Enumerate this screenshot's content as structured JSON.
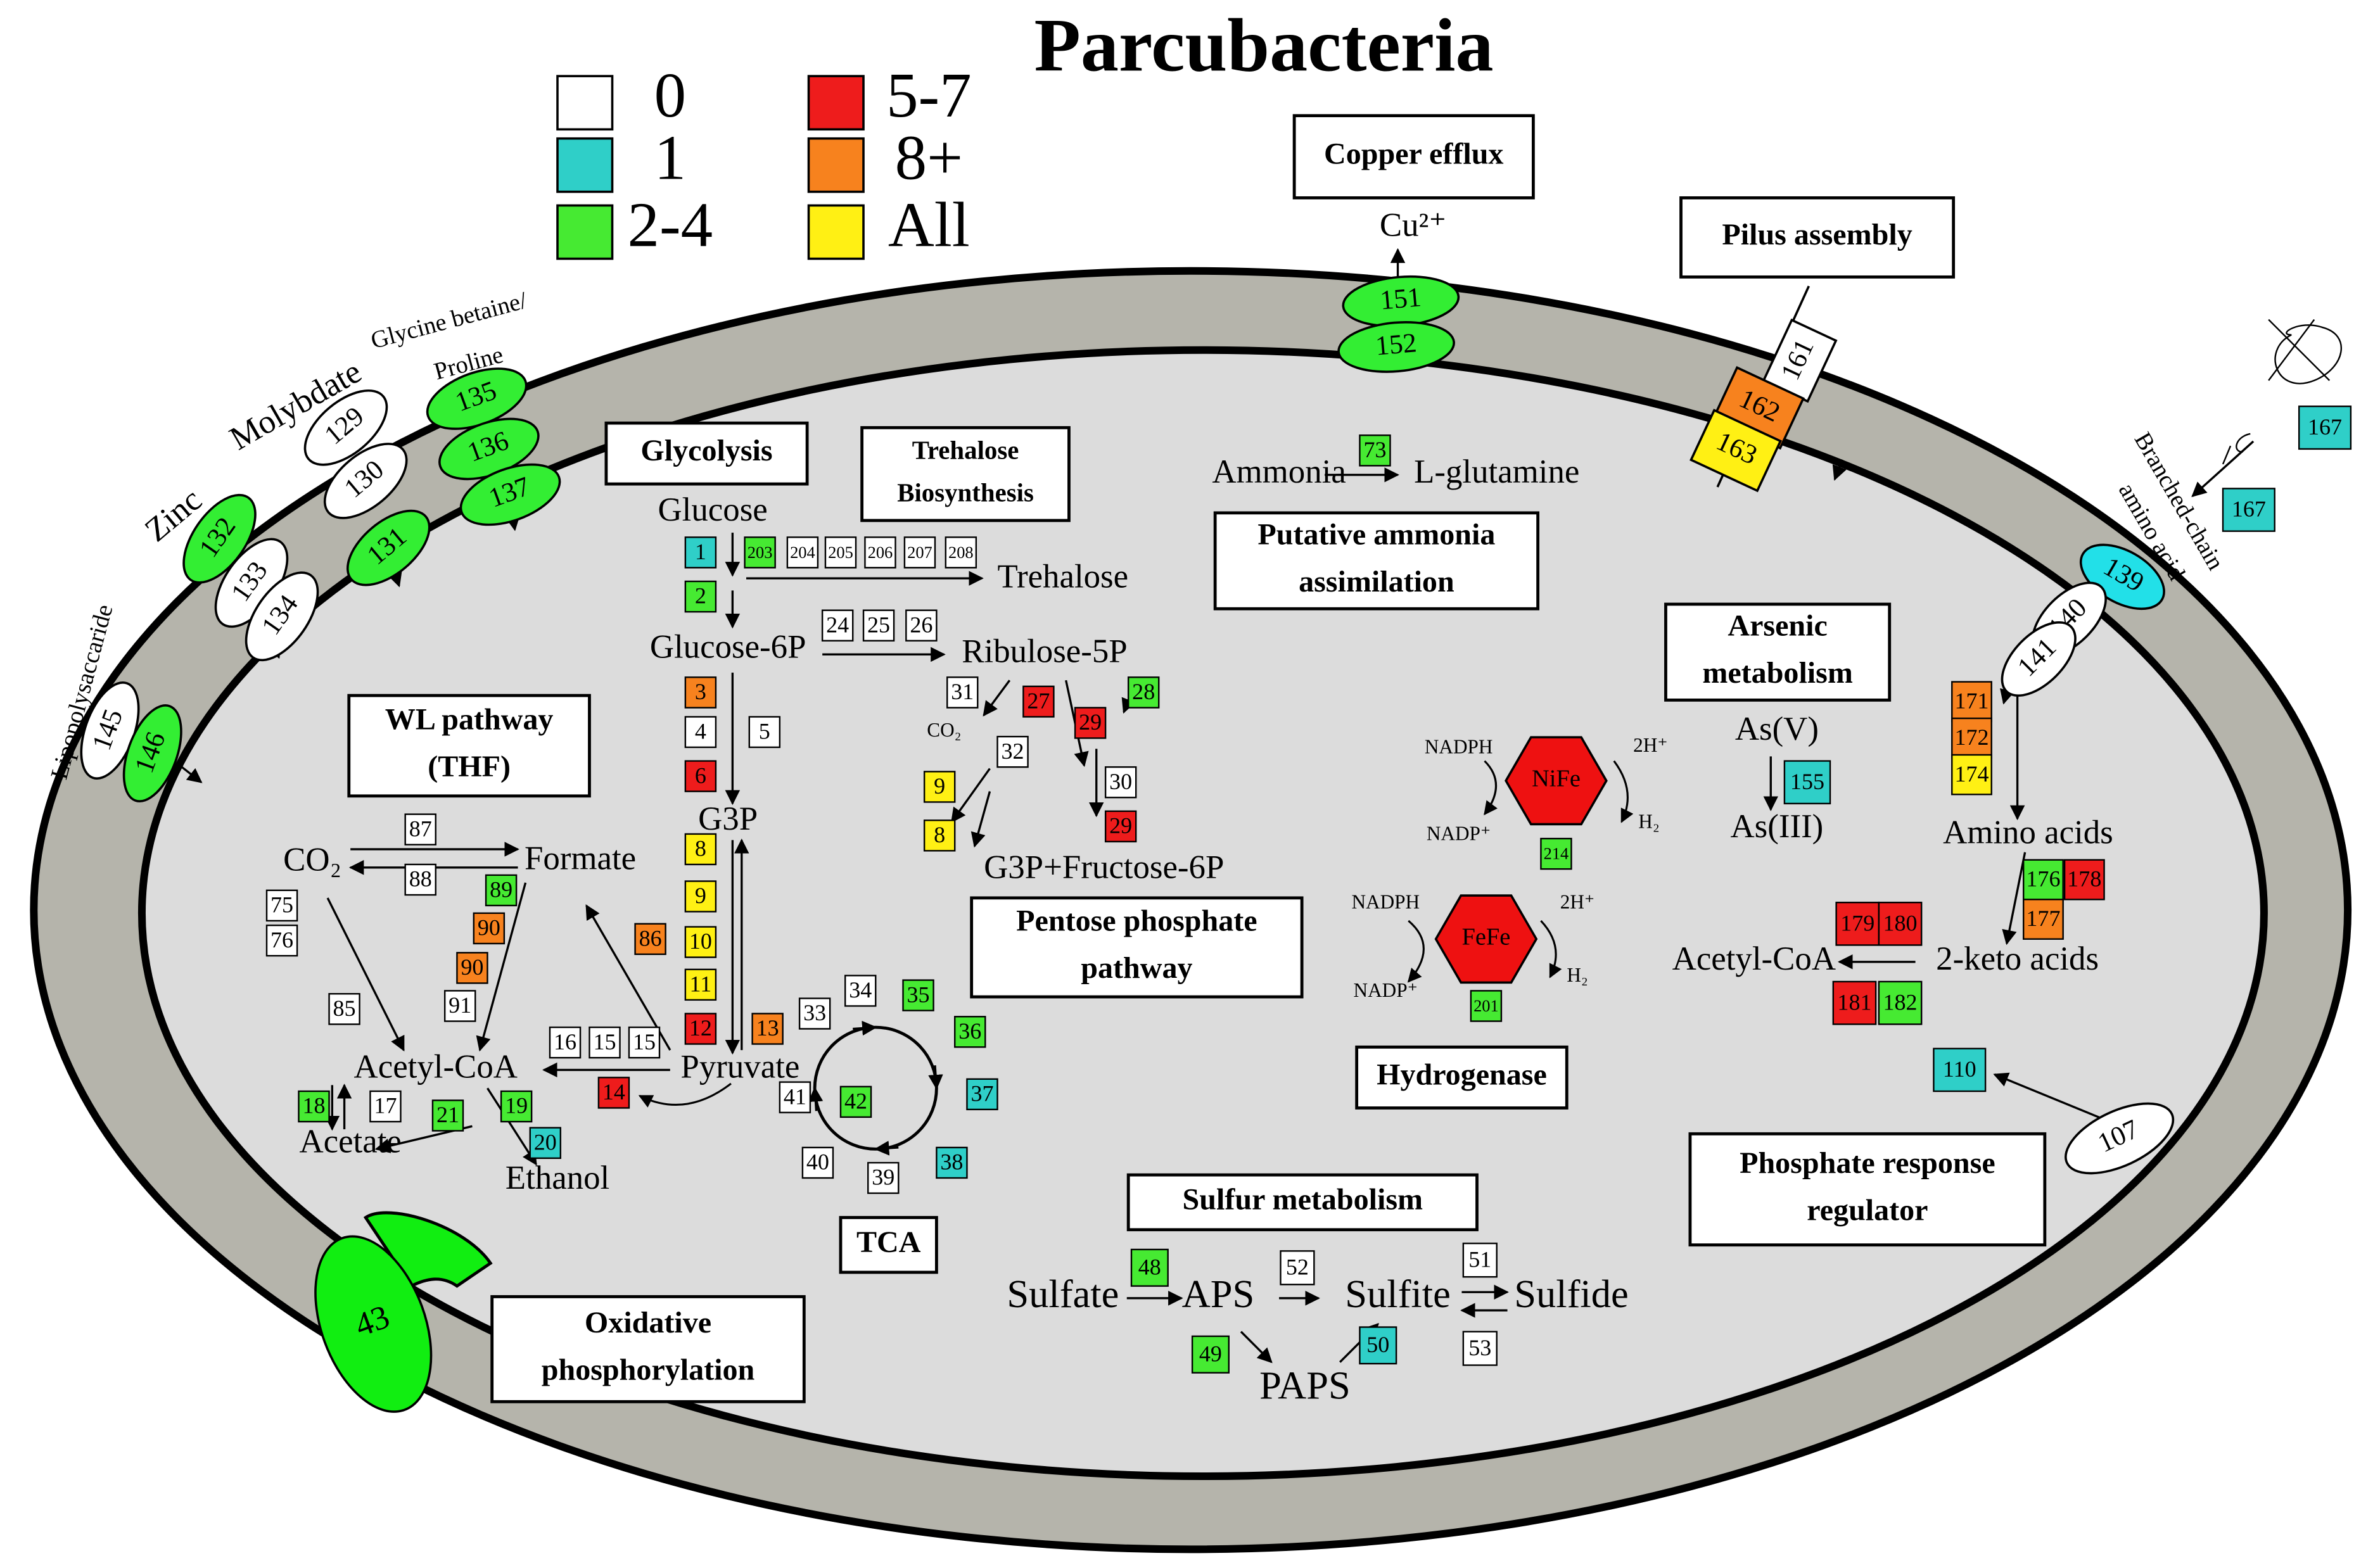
{
  "title": "Parcubacteria",
  "legend": [
    {
      "label": "0",
      "color": "#ffffff"
    },
    {
      "label": "1",
      "color": "#2fcfc8"
    },
    {
      "label": "2-4",
      "color": "#46ea32"
    },
    {
      "label": "5-7",
      "color": "#ee1c1c"
    },
    {
      "label": "8+",
      "color": "#f7821e"
    },
    {
      "label": "All",
      "color": "#fff014"
    }
  ],
  "sections": [
    [
      "Copper efflux"
    ],
    [
      "Pilus assembly"
    ],
    [
      "Glycolysis"
    ],
    [
      "Trehalose",
      "Biosynthesis"
    ],
    [
      "Putative ammonia",
      "assimilation"
    ],
    [
      "Arsenic",
      "metabolism"
    ],
    [
      "WL pathway",
      "(THF)"
    ],
    [
      "Pentose phosphate",
      "pathway"
    ],
    [
      "Hydrogenase"
    ],
    [
      "Phosphate response",
      "regulator"
    ],
    [
      "Sulfur metabolism"
    ],
    [
      "TCA"
    ],
    [
      "Oxidative",
      "phosphorylation"
    ]
  ],
  "metabolites": [
    "Glucose",
    "Glucose-6P",
    "Ribulose-5P",
    "Trehalose",
    "G3P",
    "Pyruvate",
    "G3P+Fructose-6P",
    "Formate",
    "CO₂",
    "Acetyl-CoA",
    "Acetate",
    "Ethanol",
    "Ammonia",
    "L-glutamine",
    "As(V)",
    "As(III)",
    "Amino acids",
    "2-keto acids",
    "Acetyl-CoA",
    "Sulfate",
    "APS",
    "Sulfite",
    "Sulfide",
    "PAPS",
    "CO₂",
    "NADPH",
    "NADP⁺",
    "2H⁺",
    "H₂",
    "NADPH",
    "NADP⁺",
    "2H⁺",
    "H₂",
    "Cu²⁺"
  ],
  "membrane_labels": [
    "Lipopolysaccaride",
    "Zinc",
    "Molybdate",
    "Glycine betaine/",
    "Proline",
    "Branched-chain",
    "amino acid"
  ],
  "hydrogenases": [
    "NiFe",
    "FeFe"
  ],
  "enzymes": [
    {
      "label": "1",
      "color": "#2fcfc8"
    },
    {
      "label": "203",
      "color": "#46ea32"
    },
    {
      "label": "204",
      "color": "#ffffff"
    },
    {
      "label": "205",
      "color": "#ffffff"
    },
    {
      "label": "206",
      "color": "#ffffff"
    },
    {
      "label": "207",
      "color": "#ffffff"
    },
    {
      "label": "208",
      "color": "#ffffff"
    },
    {
      "label": "2",
      "color": "#46ea32"
    },
    {
      "label": "24",
      "color": "#ffffff"
    },
    {
      "label": "25",
      "color": "#ffffff"
    },
    {
      "label": "26",
      "color": "#ffffff"
    },
    {
      "label": "3",
      "color": "#f7821e"
    },
    {
      "label": "4",
      "color": "#ffffff"
    },
    {
      "label": "5",
      "color": "#ffffff"
    },
    {
      "label": "6",
      "color": "#ee1c1c"
    },
    {
      "label": "8",
      "color": "#fff014"
    },
    {
      "label": "9",
      "color": "#fff014"
    },
    {
      "label": "10",
      "color": "#fff014"
    },
    {
      "label": "11",
      "color": "#fff014"
    },
    {
      "label": "12",
      "color": "#ee1c1c"
    },
    {
      "label": "13",
      "color": "#f7821e"
    },
    {
      "label": "31",
      "color": "#ffffff"
    },
    {
      "label": "27",
      "color": "#ee1c1c"
    },
    {
      "label": "29",
      "color": "#ee1c1c"
    },
    {
      "label": "28",
      "color": "#46ea32"
    },
    {
      "label": "32",
      "color": "#ffffff"
    },
    {
      "label": "9",
      "color": "#fff014"
    },
    {
      "label": "8",
      "color": "#fff014"
    },
    {
      "label": "30",
      "color": "#ffffff"
    },
    {
      "label": "29",
      "color": "#ee1c1c"
    },
    {
      "label": "87",
      "color": "#ffffff"
    },
    {
      "label": "88",
      "color": "#ffffff"
    },
    {
      "label": "89",
      "color": "#46ea32"
    },
    {
      "label": "90",
      "color": "#f7821e"
    },
    {
      "label": "90",
      "color": "#f7821e"
    },
    {
      "label": "91",
      "color": "#ffffff"
    },
    {
      "label": "86",
      "color": "#f7821e"
    },
    {
      "label": "75",
      "color": "#ffffff"
    },
    {
      "label": "76",
      "color": "#ffffff"
    },
    {
      "label": "85",
      "color": "#ffffff"
    },
    {
      "label": "16",
      "color": "#ffffff"
    },
    {
      "label": "15",
      "color": "#ffffff"
    },
    {
      "label": "15",
      "color": "#ffffff"
    },
    {
      "label": "14",
      "color": "#ee1c1c"
    },
    {
      "label": "18",
      "color": "#46ea32"
    },
    {
      "label": "17",
      "color": "#ffffff"
    },
    {
      "label": "19",
      "color": "#46ea32"
    },
    {
      "label": "21",
      "color": "#46ea32"
    },
    {
      "label": "20",
      "color": "#2fcfc8"
    },
    {
      "label": "33",
      "color": "#ffffff"
    },
    {
      "label": "34",
      "color": "#ffffff"
    },
    {
      "label": "35",
      "color": "#46ea32"
    },
    {
      "label": "36",
      "color": "#46ea32"
    },
    {
      "label": "37",
      "color": "#2fcfc8"
    },
    {
      "label": "38",
      "color": "#2fcfc8"
    },
    {
      "label": "39",
      "color": "#ffffff"
    },
    {
      "label": "40",
      "color": "#ffffff"
    },
    {
      "label": "41",
      "color": "#ffffff"
    },
    {
      "label": "42",
      "color": "#46ea32"
    },
    {
      "label": "73",
      "color": "#46ea32"
    },
    {
      "label": "155",
      "color": "#2fcfc8"
    },
    {
      "label": "214",
      "color": "#46ea32"
    },
    {
      "label": "201",
      "color": "#46ea32"
    },
    {
      "label": "171",
      "color": "#f7821e"
    },
    {
      "label": "172",
      "color": "#f7821e"
    },
    {
      "label": "174",
      "color": "#fff014"
    },
    {
      "label": "176",
      "color": "#46ea32"
    },
    {
      "label": "178",
      "color": "#ee1c1c"
    },
    {
      "label": "177",
      "color": "#f7821e"
    },
    {
      "label": "179",
      "color": "#ee1c1c"
    },
    {
      "label": "180",
      "color": "#ee1c1c"
    },
    {
      "label": "181",
      "color": "#ee1c1c"
    },
    {
      "label": "182",
      "color": "#46ea32"
    },
    {
      "label": "110",
      "color": "#2fcfc8"
    },
    {
      "label": "167",
      "color": "#2fcfc8"
    },
    {
      "label": "167",
      "color": "#2fcfc8"
    },
    {
      "label": "48",
      "color": "#46ea32"
    },
    {
      "label": "49",
      "color": "#46ea32"
    },
    {
      "label": "50",
      "color": "#2fcfc8"
    },
    {
      "label": "52",
      "color": "#ffffff"
    },
    {
      "label": "51",
      "color": "#ffffff"
    },
    {
      "label": "53",
      "color": "#ffffff"
    }
  ],
  "transporters": [
    {
      "label": "151",
      "color": "#33ee33"
    },
    {
      "label": "152",
      "color": "#33ee33"
    },
    {
      "label": "135",
      "color": "#33ee33"
    },
    {
      "label": "136",
      "color": "#33ee33"
    },
    {
      "label": "137",
      "color": "#33ee33"
    },
    {
      "label": "129",
      "color": "#ffffff"
    },
    {
      "label": "130",
      "color": "#ffffff"
    },
    {
      "label": "131",
      "color": "#33ee33"
    },
    {
      "label": "132",
      "color": "#33ee33"
    },
    {
      "label": "133",
      "color": "#ffffff"
    },
    {
      "label": "134",
      "color": "#ffffff"
    },
    {
      "label": "145",
      "color": "#ffffff"
    },
    {
      "label": "146",
      "color": "#33ee33"
    },
    {
      "label": "139",
      "color": "#22e0e8"
    },
    {
      "label": "140",
      "color": "#ffffff"
    },
    {
      "label": "141",
      "color": "#ffffff"
    },
    {
      "label": "107",
      "color": "#ffffff"
    },
    {
      "label": "161",
      "color": "#ffffff"
    },
    {
      "label": "162",
      "color": "#f7821e"
    },
    {
      "label": "163",
      "color": "#fff014"
    },
    {
      "label": "43",
      "color": "#11ee11"
    }
  ]
}
